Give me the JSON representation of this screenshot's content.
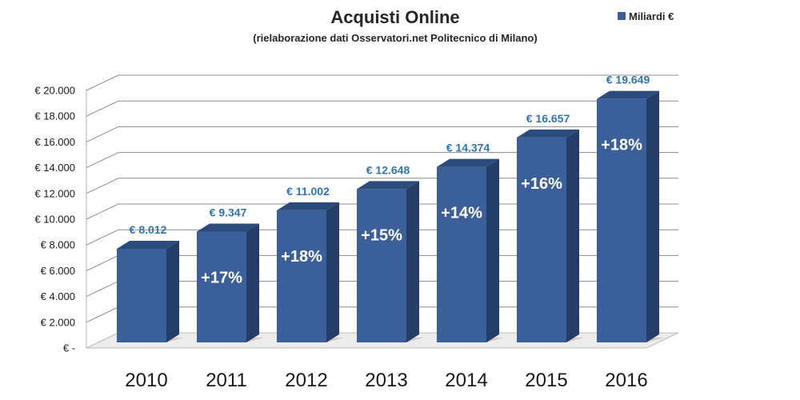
{
  "chart_data": {
    "type": "bar",
    "title": "Acquisti Online",
    "subtitle": "(rielaborazione dati  Osservatori.net Politecnico di Milano)",
    "legend": {
      "label": "Miliardi €",
      "placement": "top-right"
    },
    "categories": [
      "2010",
      "2011",
      "2012",
      "2013",
      "2014",
      "2015",
      "2016"
    ],
    "series": [
      {
        "name": "Miliardi €",
        "values": [
          8012,
          9347,
          11002,
          12648,
          14374,
          16657,
          19649
        ]
      }
    ],
    "value_labels": [
      "€ 8.012",
      "€ 9.347",
      "€ 11.002",
      "€ 12.648",
      "€ 14.374",
      "€ 16.657",
      "€ 19.649"
    ],
    "growth_labels": [
      "",
      "+17%",
      "+18%",
      "+15%",
      "+14%",
      "+16%",
      "+18%"
    ],
    "y_ticks": [
      0,
      2000,
      4000,
      6000,
      8000,
      10000,
      12000,
      14000,
      16000,
      18000,
      20000
    ],
    "y_tick_labels": [
      "€ -",
      "€ 2.000",
      "€ 4.000",
      "€ 6.000",
      "€ 8.000",
      "€ 10.000",
      "€ 12.000",
      "€ 14.000",
      "€ 16.000",
      "€ 18.000",
      "€ 20.000"
    ],
    "ylim": [
      0,
      20000
    ],
    "xlabel": "",
    "ylabel": "",
    "grid": true,
    "style": "3d-column",
    "colors": {
      "bar_front": "#3a5f99",
      "bar_side": "#243e68",
      "bar_top": "#2c4b7d",
      "value_label": "#2e75b6",
      "growth_label": "#ffffff"
    }
  }
}
